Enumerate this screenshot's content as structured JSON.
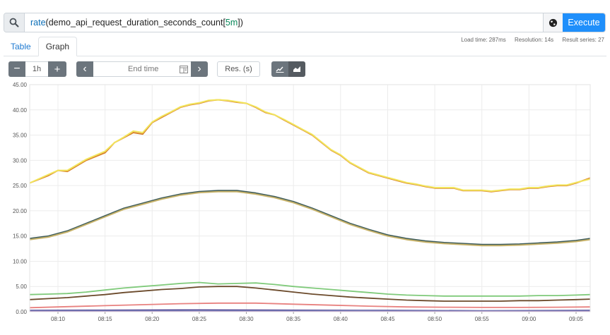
{
  "query": {
    "search_icon": "search-icon",
    "func": "rate",
    "open_paren": "(",
    "metric": "demo_api_request_duration_seconds_count",
    "open_bracket": "[",
    "range": "5m",
    "close_bracket": "])",
    "globe_icon": "globe-icon",
    "execute_label": "Execute",
    "execute_color": "#1f8ffb"
  },
  "stats": {
    "load_time": "Load time: 287ms",
    "resolution": "Resolution: 14s",
    "result_series": "Result series: 27"
  },
  "tabs": {
    "table": "Table",
    "graph": "Graph"
  },
  "controls": {
    "minus": "−",
    "range": "1h",
    "plus": "+",
    "prev": "‹",
    "end_time_placeholder": "End time",
    "next": "›",
    "res_placeholder": "Res. (s)",
    "line_icon": "line-chart-icon",
    "stacked_icon": "area-chart-icon"
  },
  "chart_data": {
    "type": "line",
    "ylim": [
      0,
      45
    ],
    "y_ticks": [
      "0.00",
      "5.00",
      "10.00",
      "15.00",
      "20.00",
      "25.00",
      "30.00",
      "35.00",
      "40.00",
      "45.00"
    ],
    "x_ticks": [
      "08:10",
      "08:15",
      "08:20",
      "08:25",
      "08:30",
      "08:35",
      "08:40",
      "08:45",
      "08:50",
      "08:55",
      "09:00",
      "09:05"
    ],
    "x_start_minute": 7,
    "x_end_minute": 66.5,
    "x_tick_minutes": [
      10,
      15,
      20,
      25,
      30,
      35,
      40,
      45,
      50,
      55,
      60,
      65
    ],
    "grid": true,
    "series": [
      {
        "color": "#d9832b",
        "values": [
          [
            7,
            25.5
          ],
          [
            9,
            27
          ],
          [
            10,
            28
          ],
          [
            11,
            27.8
          ],
          [
            13,
            30
          ],
          [
            15,
            31.5
          ],
          [
            16,
            33.5
          ],
          [
            17,
            34.5
          ],
          [
            18,
            35.5
          ],
          [
            19,
            35.2
          ],
          [
            20,
            37.5
          ],
          [
            21,
            38.5
          ],
          [
            22,
            39.5
          ],
          [
            23,
            40.5
          ],
          [
            24,
            41
          ],
          [
            25,
            41.3
          ],
          [
            26,
            41.8
          ],
          [
            27,
            42
          ],
          [
            28,
            41.8
          ],
          [
            29,
            41.5
          ],
          [
            30,
            41.3
          ],
          [
            31,
            40.5
          ],
          [
            32,
            39.5
          ],
          [
            33,
            39
          ],
          [
            34,
            38
          ],
          [
            35,
            37
          ],
          [
            36,
            36
          ],
          [
            37,
            35
          ],
          [
            38,
            33.5
          ],
          [
            39,
            32
          ],
          [
            40,
            31
          ],
          [
            41,
            29.5
          ],
          [
            42,
            28.5
          ],
          [
            43,
            27.5
          ],
          [
            44,
            27
          ],
          [
            45,
            26.5
          ],
          [
            46,
            26
          ],
          [
            47,
            25.5
          ],
          [
            48,
            25.2
          ],
          [
            49,
            24.8
          ],
          [
            50,
            24.5
          ],
          [
            51,
            24.5
          ],
          [
            52,
            24.5
          ],
          [
            53,
            24
          ],
          [
            54,
            24
          ],
          [
            55,
            24
          ],
          [
            56,
            23.8
          ],
          [
            57,
            24
          ],
          [
            58,
            24.2
          ],
          [
            59,
            24.2
          ],
          [
            60,
            24.5
          ],
          [
            61,
            24.5
          ],
          [
            62,
            24.8
          ],
          [
            63,
            25
          ],
          [
            64,
            25
          ],
          [
            65,
            25.5
          ],
          [
            66.5,
            26.5
          ]
        ]
      },
      {
        "color": "#f2e55c",
        "values": [
          [
            7,
            25.5
          ],
          [
            9,
            27.2
          ],
          [
            10,
            28
          ],
          [
            11,
            28
          ],
          [
            13,
            30.2
          ],
          [
            15,
            31.8
          ],
          [
            16,
            33.5
          ],
          [
            17,
            34.6
          ],
          [
            18,
            35.8
          ],
          [
            19,
            35.5
          ],
          [
            20,
            37.6
          ],
          [
            21,
            38.7
          ],
          [
            22,
            39.6
          ],
          [
            23,
            40.6
          ],
          [
            24,
            41.1
          ],
          [
            25,
            41.4
          ],
          [
            26,
            41.9
          ],
          [
            27,
            42
          ],
          [
            28,
            41.9
          ],
          [
            29,
            41.6
          ],
          [
            30,
            41.3
          ],
          [
            31,
            40.6
          ],
          [
            32,
            39.6
          ],
          [
            33,
            39
          ],
          [
            34,
            38.1
          ],
          [
            35,
            37.1
          ],
          [
            36,
            36.1
          ],
          [
            37,
            35.1
          ],
          [
            38,
            33.6
          ],
          [
            39,
            32.1
          ],
          [
            40,
            31.1
          ],
          [
            41,
            29.6
          ],
          [
            42,
            28.6
          ],
          [
            43,
            27.6
          ],
          [
            44,
            27.1
          ],
          [
            45,
            26.6
          ],
          [
            46,
            26.1
          ],
          [
            47,
            25.6
          ],
          [
            48,
            25.3
          ],
          [
            49,
            24.9
          ],
          [
            50,
            24.6
          ],
          [
            51,
            24.6
          ],
          [
            52,
            24.6
          ],
          [
            53,
            24.1
          ],
          [
            54,
            24.1
          ],
          [
            55,
            24.1
          ],
          [
            56,
            23.9
          ],
          [
            57,
            24.1
          ],
          [
            58,
            24.3
          ],
          [
            59,
            24.3
          ],
          [
            60,
            24.6
          ],
          [
            61,
            24.6
          ],
          [
            62,
            24.9
          ],
          [
            63,
            25.1
          ],
          [
            64,
            25.1
          ],
          [
            65,
            25.6
          ],
          [
            66.5,
            26.3
          ]
        ]
      },
      {
        "color": "#3b5a5a",
        "values": [
          [
            7,
            14.5
          ],
          [
            9,
            15
          ],
          [
            11,
            16
          ],
          [
            13,
            17.5
          ],
          [
            15,
            19
          ],
          [
            17,
            20.5
          ],
          [
            19,
            21.5
          ],
          [
            21,
            22.5
          ],
          [
            23,
            23.3
          ],
          [
            25,
            23.8
          ],
          [
            27,
            24
          ],
          [
            29,
            24
          ],
          [
            31,
            23.5
          ],
          [
            33,
            22.8
          ],
          [
            35,
            21.8
          ],
          [
            37,
            20.5
          ],
          [
            39,
            19
          ],
          [
            41,
            17.5
          ],
          [
            43,
            16.3
          ],
          [
            45,
            15.2
          ],
          [
            47,
            14.5
          ],
          [
            49,
            14
          ],
          [
            51,
            13.7
          ],
          [
            53,
            13.5
          ],
          [
            55,
            13.3
          ],
          [
            57,
            13.3
          ],
          [
            59,
            13.4
          ],
          [
            61,
            13.6
          ],
          [
            63,
            13.8
          ],
          [
            65,
            14.1
          ],
          [
            66.5,
            14.5
          ]
        ]
      },
      {
        "color": "#c7b26a",
        "values": [
          [
            7,
            14.3
          ],
          [
            9,
            14.8
          ],
          [
            11,
            15.8
          ],
          [
            13,
            17.3
          ],
          [
            15,
            18.8
          ],
          [
            17,
            20.3
          ],
          [
            19,
            21.3
          ],
          [
            21,
            22.3
          ],
          [
            23,
            23.1
          ],
          [
            25,
            23.6
          ],
          [
            27,
            23.8
          ],
          [
            29,
            23.8
          ],
          [
            31,
            23.3
          ],
          [
            33,
            22.6
          ],
          [
            35,
            21.6
          ],
          [
            37,
            20.3
          ],
          [
            39,
            18.8
          ],
          [
            41,
            17.3
          ],
          [
            43,
            16.1
          ],
          [
            45,
            15
          ],
          [
            47,
            14.3
          ],
          [
            49,
            13.8
          ],
          [
            51,
            13.5
          ],
          [
            53,
            13.3
          ],
          [
            55,
            13.1
          ],
          [
            57,
            13.1
          ],
          [
            59,
            13.2
          ],
          [
            61,
            13.4
          ],
          [
            63,
            13.6
          ],
          [
            65,
            13.9
          ],
          [
            66.5,
            14.3
          ]
        ]
      },
      {
        "color": "#7fca7a",
        "values": [
          [
            7,
            3.4
          ],
          [
            9,
            3.5
          ],
          [
            11,
            3.6
          ],
          [
            13,
            3.9
          ],
          [
            15,
            4.3
          ],
          [
            17,
            4.7
          ],
          [
            19,
            5
          ],
          [
            21,
            5.3
          ],
          [
            23,
            5.6
          ],
          [
            25,
            5.8
          ],
          [
            27,
            5.5
          ],
          [
            29,
            5.6
          ],
          [
            31,
            5.7
          ],
          [
            33,
            5.4
          ],
          [
            35,
            5
          ],
          [
            37,
            4.7
          ],
          [
            39,
            4.4
          ],
          [
            41,
            4.1
          ],
          [
            43,
            3.8
          ],
          [
            45,
            3.5
          ],
          [
            47,
            3.3
          ],
          [
            49,
            3.2
          ],
          [
            51,
            3.1
          ],
          [
            53,
            3.1
          ],
          [
            55,
            3.1
          ],
          [
            57,
            3.1
          ],
          [
            59,
            3.1
          ],
          [
            61,
            3.2
          ],
          [
            63,
            3.2
          ],
          [
            65,
            3.3
          ],
          [
            66.5,
            3.4
          ]
        ]
      },
      {
        "color": "#6b4a2b",
        "values": [
          [
            7,
            2.4
          ],
          [
            9,
            2.6
          ],
          [
            11,
            2.8
          ],
          [
            13,
            3.1
          ],
          [
            15,
            3.4
          ],
          [
            17,
            3.8
          ],
          [
            19,
            4.1
          ],
          [
            21,
            4.4
          ],
          [
            23,
            4.6
          ],
          [
            25,
            4.9
          ],
          [
            27,
            5
          ],
          [
            29,
            5
          ],
          [
            31,
            4.7
          ],
          [
            33,
            4.3
          ],
          [
            35,
            3.9
          ],
          [
            37,
            3.5
          ],
          [
            39,
            3.2
          ],
          [
            41,
            2.9
          ],
          [
            43,
            2.7
          ],
          [
            45,
            2.5
          ],
          [
            47,
            2.3
          ],
          [
            49,
            2.2
          ],
          [
            51,
            2.1
          ],
          [
            53,
            2.1
          ],
          [
            55,
            2.1
          ],
          [
            57,
            2.1
          ],
          [
            59,
            2.2
          ],
          [
            61,
            2.2
          ],
          [
            63,
            2.3
          ],
          [
            65,
            2.4
          ],
          [
            66.5,
            2.5
          ]
        ]
      },
      {
        "color": "#e8817f",
        "values": [
          [
            7,
            0.8
          ],
          [
            11,
            1
          ],
          [
            15,
            1.2
          ],
          [
            19,
            1.4
          ],
          [
            23,
            1.6
          ],
          [
            27,
            1.7
          ],
          [
            31,
            1.7
          ],
          [
            35,
            1.5
          ],
          [
            39,
            1.3
          ],
          [
            43,
            1.1
          ],
          [
            47,
            0.95
          ],
          [
            51,
            0.9
          ],
          [
            55,
            0.85
          ],
          [
            59,
            0.85
          ],
          [
            63,
            0.9
          ],
          [
            66.5,
            0.95
          ]
        ]
      },
      {
        "color": "#4a3f8f",
        "values": [
          [
            7,
            0.25
          ],
          [
            15,
            0.3
          ],
          [
            25,
            0.35
          ],
          [
            35,
            0.3
          ],
          [
            45,
            0.25
          ],
          [
            55,
            0.2
          ],
          [
            66.5,
            0.25
          ]
        ]
      },
      {
        "color": "#8ab8d8",
        "values": [
          [
            7,
            0.1
          ],
          [
            20,
            0.12
          ],
          [
            35,
            0.12
          ],
          [
            50,
            0.1
          ],
          [
            66.5,
            0.1
          ]
        ]
      },
      {
        "color": "#9b6fb6",
        "values": [
          [
            7,
            0.05
          ],
          [
            30,
            0.06
          ],
          [
            66.5,
            0.05
          ]
        ]
      }
    ]
  }
}
